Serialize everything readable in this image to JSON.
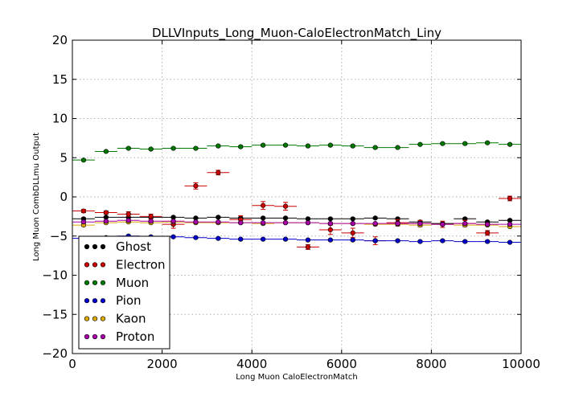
{
  "chart_data": {
    "type": "scatter",
    "title": "DLLVInputs_Long_Muon-CaloElectronMatch_Liny",
    "xlabel": "Long Muon CaloElectronMatch",
    "ylabel": "Long Muon CombDLLmu Output",
    "xlim": [
      0,
      10000
    ],
    "ylim": [
      -20,
      20
    ],
    "xticks": [
      "0",
      "2000",
      "4000",
      "6000",
      "8000",
      "10000"
    ],
    "yticks": [
      "20",
      "15",
      "10",
      "5",
      "0",
      "−5",
      "−10",
      "−15",
      "−20"
    ],
    "grid": true,
    "legend_position": "bottom-left",
    "bin_width": 500,
    "x_centers": [
      250,
      750,
      1250,
      1750,
      2250,
      2750,
      3250,
      3750,
      4250,
      4750,
      5250,
      5750,
      6250,
      6750,
      7250,
      7750,
      8250,
      8750,
      9250,
      9750
    ],
    "series": [
      {
        "name": "Ghost",
        "color": "#000000",
        "values": [
          -2.8,
          -2.6,
          -2.6,
          -2.6,
          -2.6,
          -2.7,
          -2.6,
          -2.7,
          -2.7,
          -2.7,
          -2.8,
          -2.8,
          -2.8,
          -2.7,
          -2.8,
          -3.2,
          -3.4,
          -2.8,
          -3.2,
          -3.0
        ],
        "errors": [
          0.1,
          0.1,
          0.1,
          0.1,
          0.1,
          0.1,
          0.1,
          0.1,
          0.1,
          0.1,
          0.1,
          0.1,
          0.1,
          0.1,
          0.1,
          0.1,
          0.1,
          0.1,
          0.1,
          0.1
        ]
      },
      {
        "name": "Electron",
        "color": "#cc0000",
        "values": [
          -1.8,
          -2.0,
          -2.2,
          -2.5,
          -3.5,
          1.4,
          3.1,
          -2.9,
          -1.1,
          -1.2,
          -6.4,
          -4.2,
          -4.6,
          -5.6,
          -3.3,
          -3.4,
          -3.5,
          -3.4,
          -4.6,
          -0.2
        ],
        "errors": [
          0.2,
          0.2,
          0.3,
          0.3,
          0.5,
          0.4,
          0.3,
          0.5,
          0.5,
          0.5,
          0.3,
          0.6,
          0.6,
          0.5,
          0.4,
          0.4,
          0.4,
          0.4,
          0.3,
          0.3
        ]
      },
      {
        "name": "Muon",
        "color": "#007700",
        "values": [
          4.7,
          5.8,
          6.2,
          6.1,
          6.2,
          6.2,
          6.5,
          6.4,
          6.6,
          6.6,
          6.5,
          6.6,
          6.5,
          6.3,
          6.3,
          6.7,
          6.8,
          6.8,
          6.9,
          6.7
        ],
        "errors": [
          0.1,
          0.1,
          0.1,
          0.1,
          0.1,
          0.1,
          0.1,
          0.1,
          0.1,
          0.1,
          0.1,
          0.1,
          0.1,
          0.1,
          0.1,
          0.1,
          0.1,
          0.1,
          0.1,
          0.1
        ]
      },
      {
        "name": "Pion",
        "color": "#0000cc",
        "values": [
          -5.3,
          -5.2,
          -5.0,
          -5.1,
          -5.1,
          -5.2,
          -5.3,
          -5.4,
          -5.4,
          -5.4,
          -5.5,
          -5.5,
          -5.5,
          -5.6,
          -5.6,
          -5.7,
          -5.6,
          -5.7,
          -5.7,
          -5.8
        ],
        "errors": [
          0.1,
          0.1,
          0.1,
          0.1,
          0.1,
          0.1,
          0.1,
          0.1,
          0.1,
          0.1,
          0.1,
          0.1,
          0.1,
          0.1,
          0.1,
          0.1,
          0.1,
          0.1,
          0.1,
          0.1
        ]
      },
      {
        "name": "Kaon",
        "color": "#ddaa00",
        "values": [
          -3.6,
          -3.3,
          -3.2,
          -3.3,
          -3.2,
          -3.3,
          -3.3,
          -3.3,
          -3.4,
          -3.3,
          -3.3,
          -3.4,
          -3.4,
          -3.5,
          -3.5,
          -3.6,
          -3.5,
          -3.6,
          -3.6,
          -3.8
        ],
        "errors": [
          0.1,
          0.1,
          0.1,
          0.1,
          0.1,
          0.1,
          0.1,
          0.1,
          0.1,
          0.1,
          0.1,
          0.1,
          0.1,
          0.1,
          0.1,
          0.1,
          0.1,
          0.1,
          0.1,
          0.1
        ]
      },
      {
        "name": "Proton",
        "color": "#aa00aa",
        "values": [
          -3.2,
          -3.1,
          -3.0,
          -3.1,
          -3.1,
          -3.2,
          -3.2,
          -3.3,
          -3.3,
          -3.3,
          -3.3,
          -3.4,
          -3.4,
          -3.4,
          -3.4,
          -3.4,
          -3.5,
          -3.4,
          -3.5,
          -3.5
        ],
        "errors": [
          0.1,
          0.1,
          0.1,
          0.1,
          0.1,
          0.1,
          0.1,
          0.1,
          0.1,
          0.1,
          0.1,
          0.1,
          0.1,
          0.1,
          0.1,
          0.1,
          0.1,
          0.1,
          0.1,
          0.1
        ]
      }
    ]
  }
}
